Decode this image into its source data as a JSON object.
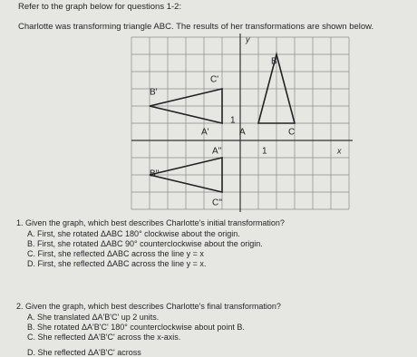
{
  "header": {
    "instruction": "Refer to the graph below for questions 1-2:",
    "description": "Charlotte was transforming triangle ABC. The results of her transformations are shown below."
  },
  "graph": {
    "labels": {
      "y_axis": "y",
      "x_axis": "x",
      "b": "B",
      "c_prime": "C'",
      "b_prime": "B'",
      "y_one": "1",
      "a_prime": "A'",
      "a": "A",
      "c": "C",
      "x_one": "1",
      "a_double": "A''",
      "b_double": "B''",
      "c_double": "C''"
    }
  },
  "questions": [
    {
      "prompt": "1. Given the graph, which best describes Charlotte's initial transformation?",
      "options": [
        "A. First, she rotated ΔABC 180° clockwise about the origin.",
        "B. First, she rotated ΔABC 90° counterclockwise about the origin.",
        "C. First, she reflected ΔABC across the line y = x",
        "D. First, she reflected ΔABC across the line y = x."
      ]
    },
    {
      "prompt": "2. Given the graph, which best describes Charlotte's final transformation?",
      "options": [
        "A. She translated ΔA'B'C' up 2 units.",
        "B. She rotated ΔA'B'C' 180° counterclockwise about point B.",
        "C. She reflected ΔA'B'C' across the x-axis.",
        "D. She reflected ΔA'B'C' across"
      ]
    }
  ]
}
